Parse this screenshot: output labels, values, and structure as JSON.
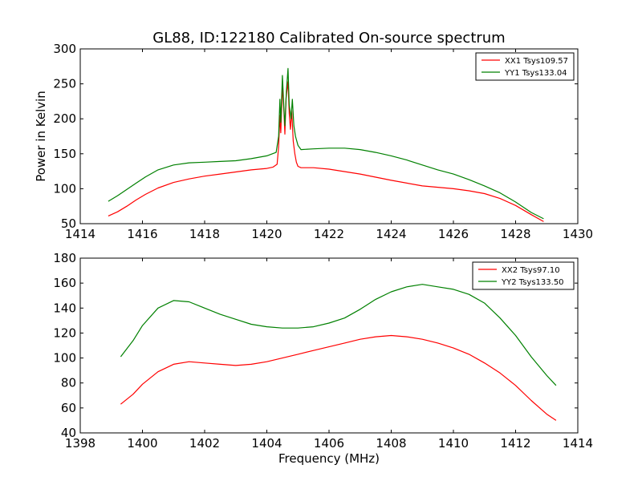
{
  "chart_data": [
    {
      "type": "line",
      "title": "GL88, ID:122180 Calibrated On-source spectrum",
      "xlabel": "",
      "ylabel": "Power in Kelvin",
      "xlim": [
        1414,
        1430
      ],
      "ylim": [
        50,
        300
      ],
      "xticks": [
        1414,
        1416,
        1418,
        1420,
        1422,
        1424,
        1426,
        1428,
        1430
      ],
      "yticks": [
        50,
        100,
        150,
        200,
        250,
        300
      ],
      "grid": false,
      "legend_position": "top-right",
      "series": [
        {
          "name": "XX1 Tsys109.57",
          "color": "#ff0000",
          "points": [
            [
              1414.9,
              61
            ],
            [
              1415.2,
              67
            ],
            [
              1415.5,
              75
            ],
            [
              1415.8,
              84
            ],
            [
              1416.1,
              92
            ],
            [
              1416.5,
              101
            ],
            [
              1417.0,
              109
            ],
            [
              1417.5,
              114
            ],
            [
              1418.0,
              118
            ],
            [
              1418.5,
              121
            ],
            [
              1419.0,
              124
            ],
            [
              1419.5,
              127
            ],
            [
              1420.0,
              129
            ],
            [
              1420.2,
              131
            ],
            [
              1420.33,
              135
            ],
            [
              1420.38,
              160
            ],
            [
              1420.42,
              205
            ],
            [
              1420.45,
              180
            ],
            [
              1420.5,
              248
            ],
            [
              1420.55,
              210
            ],
            [
              1420.58,
              178
            ],
            [
              1420.62,
              230
            ],
            [
              1420.68,
              253
            ],
            [
              1420.72,
              208
            ],
            [
              1420.76,
              185
            ],
            [
              1420.8,
              212
            ],
            [
              1420.85,
              168
            ],
            [
              1420.9,
              150
            ],
            [
              1420.95,
              138
            ],
            [
              1421.0,
              132
            ],
            [
              1421.1,
              130
            ],
            [
              1421.5,
              130
            ],
            [
              1422.0,
              128
            ],
            [
              1423.0,
              121
            ],
            [
              1424.0,
              112
            ],
            [
              1425.0,
              104
            ],
            [
              1426.0,
              100
            ],
            [
              1426.5,
              97
            ],
            [
              1427.0,
              93
            ],
            [
              1427.5,
              86
            ],
            [
              1428.0,
              76
            ],
            [
              1428.5,
              63
            ],
            [
              1428.9,
              53
            ]
          ]
        },
        {
          "name": "YY1 Tsys133.04",
          "color": "#008000",
          "points": [
            [
              1414.9,
              82
            ],
            [
              1415.2,
              90
            ],
            [
              1415.5,
              99
            ],
            [
              1415.8,
              108
            ],
            [
              1416.1,
              117
            ],
            [
              1416.5,
              127
            ],
            [
              1417.0,
              134
            ],
            [
              1417.5,
              137
            ],
            [
              1418.0,
              138
            ],
            [
              1418.5,
              139
            ],
            [
              1419.0,
              140
            ],
            [
              1419.5,
              143
            ],
            [
              1420.0,
              147
            ],
            [
              1420.3,
              152
            ],
            [
              1420.38,
              175
            ],
            [
              1420.42,
              228
            ],
            [
              1420.45,
              195
            ],
            [
              1420.5,
              262
            ],
            [
              1420.55,
              215
            ],
            [
              1420.58,
              190
            ],
            [
              1420.63,
              240
            ],
            [
              1420.68,
              272
            ],
            [
              1420.72,
              220
            ],
            [
              1420.78,
              200
            ],
            [
              1420.82,
              228
            ],
            [
              1420.87,
              190
            ],
            [
              1420.92,
              175
            ],
            [
              1421.0,
              162
            ],
            [
              1421.1,
              156
            ],
            [
              1421.5,
              157
            ],
            [
              1422.0,
              158
            ],
            [
              1422.5,
              158
            ],
            [
              1423.0,
              156
            ],
            [
              1423.5,
              152
            ],
            [
              1424.0,
              147
            ],
            [
              1424.5,
              141
            ],
            [
              1425.0,
              134
            ],
            [
              1425.5,
              127
            ],
            [
              1426.0,
              121
            ],
            [
              1426.5,
              113
            ],
            [
              1427.0,
              104
            ],
            [
              1427.5,
              94
            ],
            [
              1428.0,
              81
            ],
            [
              1428.5,
              66
            ],
            [
              1428.9,
              57
            ]
          ]
        }
      ]
    },
    {
      "type": "line",
      "title": "",
      "xlabel": "Frequency (MHz)",
      "ylabel": "",
      "xlim": [
        1398,
        1414
      ],
      "ylim": [
        40,
        180
      ],
      "xticks": [
        1398,
        1400,
        1402,
        1404,
        1406,
        1408,
        1410,
        1412,
        1414
      ],
      "yticks": [
        40,
        60,
        80,
        100,
        120,
        140,
        160,
        180
      ],
      "grid": false,
      "legend_position": "top-right",
      "series": [
        {
          "name": "XX2 Tsys97.10",
          "color": "#ff0000",
          "points": [
            [
              1399.3,
              63
            ],
            [
              1399.7,
              71
            ],
            [
              1400.0,
              79
            ],
            [
              1400.5,
              89
            ],
            [
              1401.0,
              95
            ],
            [
              1401.5,
              97
            ],
            [
              1402.0,
              96
            ],
            [
              1402.5,
              95
            ],
            [
              1403.0,
              94
            ],
            [
              1403.5,
              95
            ],
            [
              1404.0,
              97
            ],
            [
              1404.5,
              100
            ],
            [
              1405.0,
              103
            ],
            [
              1405.5,
              106
            ],
            [
              1406.0,
              109
            ],
            [
              1406.5,
              112
            ],
            [
              1407.0,
              115
            ],
            [
              1407.5,
              117
            ],
            [
              1408.0,
              118
            ],
            [
              1408.5,
              117
            ],
            [
              1409.0,
              115
            ],
            [
              1409.5,
              112
            ],
            [
              1410.0,
              108
            ],
            [
              1410.5,
              103
            ],
            [
              1411.0,
              96
            ],
            [
              1411.5,
              88
            ],
            [
              1412.0,
              78
            ],
            [
              1412.5,
              66
            ],
            [
              1413.0,
              55
            ],
            [
              1413.3,
              50
            ]
          ]
        },
        {
          "name": "YY2 Tsys133.50",
          "color": "#008000",
          "points": [
            [
              1399.3,
              101
            ],
            [
              1399.7,
              114
            ],
            [
              1400.0,
              126
            ],
            [
              1400.5,
              140
            ],
            [
              1401.0,
              146
            ],
            [
              1401.5,
              145
            ],
            [
              1402.0,
              140
            ],
            [
              1402.5,
              135
            ],
            [
              1403.0,
              131
            ],
            [
              1403.5,
              127
            ],
            [
              1404.0,
              125
            ],
            [
              1404.5,
              124
            ],
            [
              1405.0,
              124
            ],
            [
              1405.5,
              125
            ],
            [
              1406.0,
              128
            ],
            [
              1406.5,
              132
            ],
            [
              1407.0,
              139
            ],
            [
              1407.5,
              147
            ],
            [
              1408.0,
              153
            ],
            [
              1408.5,
              157
            ],
            [
              1409.0,
              159
            ],
            [
              1409.5,
              157
            ],
            [
              1410.0,
              155
            ],
            [
              1410.5,
              151
            ],
            [
              1411.0,
              144
            ],
            [
              1411.5,
              132
            ],
            [
              1412.0,
              118
            ],
            [
              1412.5,
              101
            ],
            [
              1413.0,
              86
            ],
            [
              1413.3,
              78
            ]
          ]
        }
      ]
    }
  ]
}
